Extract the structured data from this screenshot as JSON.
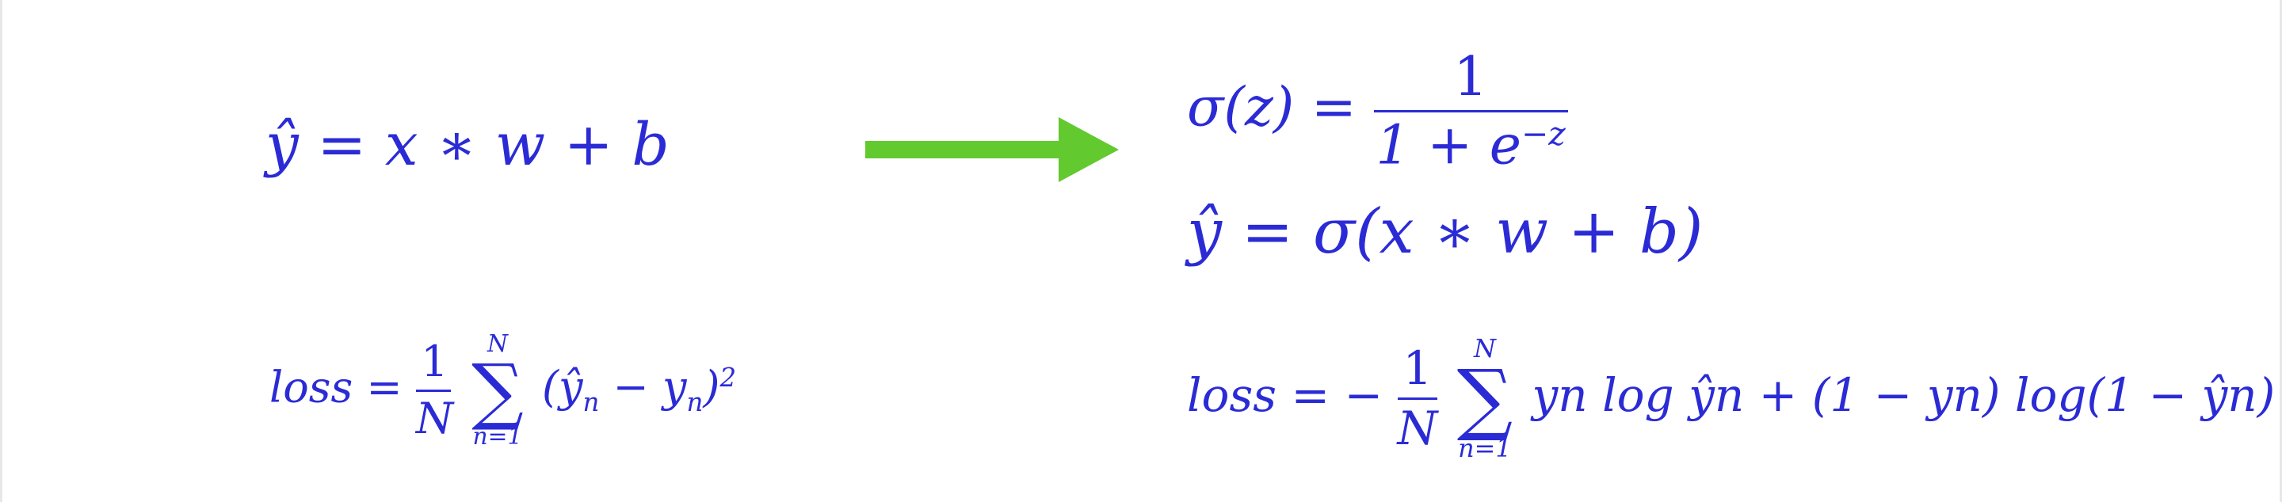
{
  "linear": {
    "model": "ŷ = x ∗ w + b"
  },
  "loss_mse": {
    "label": "loss",
    "eq": "=",
    "num": "1",
    "den": "N",
    "sum_top": "N",
    "sum_bot": "n=1",
    "term": "(ŷ",
    "term_sub": "n",
    "minus": " − y",
    "minus_sub": "n",
    "close": ")",
    "pow": "2"
  },
  "sigmoid": {
    "lhs": "σ(z) =",
    "num": "1",
    "den_base": "1 + e",
    "den_exp": "−z"
  },
  "logistic": {
    "model": "ŷ = σ(x ∗ w + b)"
  },
  "loss_bce": {
    "label": "loss",
    "eq": "= −",
    "num": "1",
    "den": "N",
    "sum_top": "N",
    "sum_bot": "n=1",
    "rest": "yn log ŷn + (1 − yn) log(1 − ŷn)"
  },
  "colors": {
    "text": "#2b2bd6",
    "arrow": "#62c92f"
  },
  "icons": {
    "arrow": "right-arrow-icon"
  }
}
